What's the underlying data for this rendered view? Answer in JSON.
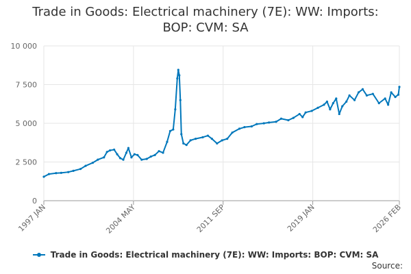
{
  "chart_data": {
    "type": "line",
    "title": "Trade in Goods: Electrical machinery (7E): WW: Imports: BOP: CVM: SA",
    "title_lines": [
      "Trade in Goods: Electrical machinery (7E): WW: Imports:",
      "BOP: CVM: SA"
    ],
    "xlabel": "",
    "ylabel": "",
    "ylim": [
      0,
      10000
    ],
    "y_ticks": [
      0,
      2500,
      5000,
      7500,
      10000
    ],
    "y_tick_labels": [
      "0",
      "2 500",
      "5 000",
      "7 500",
      "10 000"
    ],
    "x_range": [
      "1997-01",
      "2026-02"
    ],
    "x_ticks": [
      "1997-01",
      "2004-05",
      "2011-09",
      "2019-01",
      "2026-02"
    ],
    "x_tick_labels": [
      "1997 JAN",
      "2004 MAY",
      "2011 SEP",
      "2019 JAN",
      "2026 FEB"
    ],
    "grid": true,
    "legend_position": "bottom",
    "color": "#0077bb",
    "series": [
      {
        "name": "Trade in Goods: Electrical machinery (7E): WW: Imports: BOP: CVM: SA",
        "points": [
          [
            "1997-01",
            1550
          ],
          [
            "1997-06",
            1720
          ],
          [
            "1998-01",
            1780
          ],
          [
            "1998-06",
            1800
          ],
          [
            "1999-01",
            1850
          ],
          [
            "1999-06",
            1930
          ],
          [
            "2000-01",
            2050
          ],
          [
            "2000-06",
            2250
          ],
          [
            "2001-01",
            2450
          ],
          [
            "2001-06",
            2650
          ],
          [
            "2001-12",
            2800
          ],
          [
            "2002-03",
            3150
          ],
          [
            "2002-06",
            3250
          ],
          [
            "2002-10",
            3300
          ],
          [
            "2003-01",
            3000
          ],
          [
            "2003-04",
            2750
          ],
          [
            "2003-07",
            2650
          ],
          [
            "2003-10",
            3100
          ],
          [
            "2003-12",
            3400
          ],
          [
            "2004-03",
            2800
          ],
          [
            "2004-06",
            3000
          ],
          [
            "2004-09",
            2950
          ],
          [
            "2005-01",
            2650
          ],
          [
            "2005-06",
            2700
          ],
          [
            "2005-10",
            2850
          ],
          [
            "2006-02",
            2950
          ],
          [
            "2006-06",
            3200
          ],
          [
            "2006-10",
            3100
          ],
          [
            "2007-02",
            3800
          ],
          [
            "2007-05",
            4500
          ],
          [
            "2007-08",
            4600
          ],
          [
            "2007-10",
            5900
          ],
          [
            "2007-12",
            7900
          ],
          [
            "2008-01",
            8450
          ],
          [
            "2008-02",
            8100
          ],
          [
            "2008-03",
            6500
          ],
          [
            "2008-04",
            4300
          ],
          [
            "2008-06",
            3700
          ],
          [
            "2008-09",
            3600
          ],
          [
            "2009-01",
            3900
          ],
          [
            "2009-06",
            4000
          ],
          [
            "2010-01",
            4100
          ],
          [
            "2010-06",
            4200
          ],
          [
            "2010-10",
            4000
          ],
          [
            "2011-03",
            3700
          ],
          [
            "2011-08",
            3900
          ],
          [
            "2012-01",
            4000
          ],
          [
            "2012-06",
            4400
          ],
          [
            "2013-01",
            4650
          ],
          [
            "2013-06",
            4750
          ],
          [
            "2014-01",
            4800
          ],
          [
            "2014-06",
            4950
          ],
          [
            "2015-01",
            5000
          ],
          [
            "2015-06",
            5050
          ],
          [
            "2016-01",
            5100
          ],
          [
            "2016-06",
            5300
          ],
          [
            "2017-01",
            5200
          ],
          [
            "2017-06",
            5350
          ],
          [
            "2017-12",
            5600
          ],
          [
            "2018-03",
            5400
          ],
          [
            "2018-06",
            5700
          ],
          [
            "2018-12",
            5800
          ],
          [
            "2019-06",
            6000
          ],
          [
            "2019-12",
            6200
          ],
          [
            "2020-03",
            6400
          ],
          [
            "2020-06",
            5900
          ],
          [
            "2020-09",
            6300
          ],
          [
            "2020-12",
            6600
          ],
          [
            "2021-03",
            5600
          ],
          [
            "2021-06",
            6100
          ],
          [
            "2021-10",
            6400
          ],
          [
            "2022-01",
            6800
          ],
          [
            "2022-06",
            6500
          ],
          [
            "2022-10",
            7000
          ],
          [
            "2023-02",
            7200
          ],
          [
            "2023-06",
            6800
          ],
          [
            "2023-12",
            6900
          ],
          [
            "2024-06",
            6300
          ],
          [
            "2024-12",
            6600
          ],
          [
            "2025-03",
            6200
          ],
          [
            "2025-06",
            7000
          ],
          [
            "2025-10",
            6700
          ],
          [
            "2026-01",
            6850
          ],
          [
            "2026-02",
            7350
          ]
        ]
      }
    ],
    "source_label": "Source:"
  }
}
